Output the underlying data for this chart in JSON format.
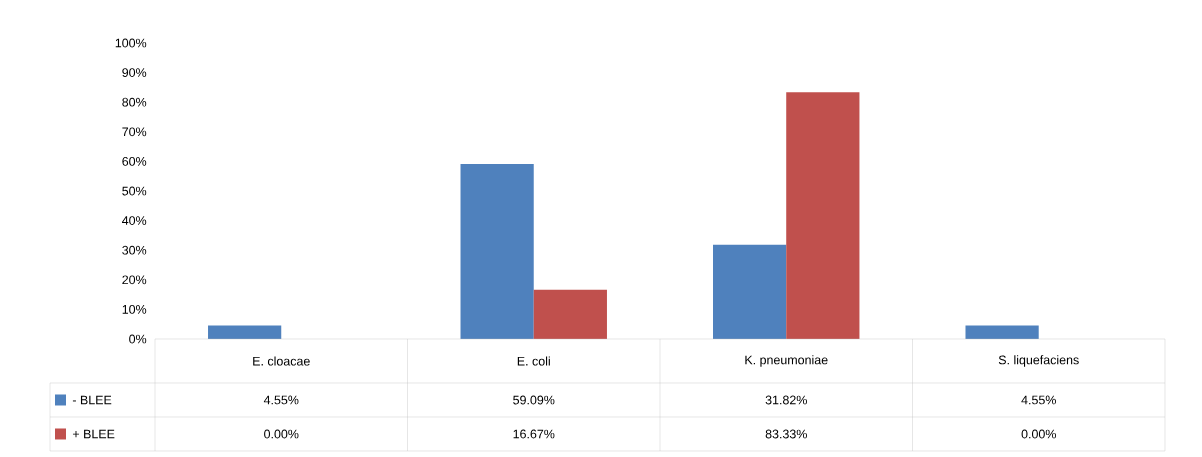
{
  "chart_data": {
    "type": "bar",
    "categories": [
      "E. cloacae",
      "E. coli",
      "K. pneumoniae",
      "S. liquefaciens"
    ],
    "series": [
      {
        "name": "- BLEE",
        "color": "#4f81bd",
        "values": [
          4.55,
          59.09,
          31.82,
          4.55
        ],
        "value_labels": [
          "4.55%",
          "59.09%",
          "31.82%",
          "4.55%"
        ]
      },
      {
        "name": "+ BLEE",
        "color": "#c0504d",
        "values": [
          0.0,
          16.67,
          83.33,
          0.0
        ],
        "value_labels": [
          "0.00%",
          "16.67%",
          "83.33%",
          "0.00%"
        ]
      }
    ],
    "ylim": [
      0,
      100
    ],
    "yticks": [
      {
        "value": 0,
        "label": "0%"
      },
      {
        "value": 10,
        "label": "10%"
      },
      {
        "value": 20,
        "label": "20%"
      },
      {
        "value": 30,
        "label": "30%"
      },
      {
        "value": 40,
        "label": "40%"
      },
      {
        "value": 50,
        "label": "50%"
      },
      {
        "value": 60,
        "label": "60%"
      },
      {
        "value": 70,
        "label": "70%"
      },
      {
        "value": 80,
        "label": "80%"
      },
      {
        "value": 90,
        "label": "90%"
      },
      {
        "value": 100,
        "label": "100%"
      }
    ],
    "legend": "bottom",
    "grid": false
  }
}
